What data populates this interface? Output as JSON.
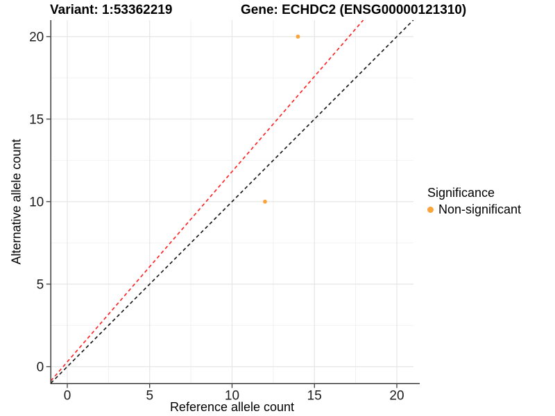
{
  "chart_data": {
    "type": "scatter",
    "title_left": "Variant: 1:53362219",
    "title_right": "Gene: ECHDC2 (ENSG00000121310)",
    "xlabel": "Reference allele count",
    "ylabel": "Alternative allele count",
    "xlim": [
      -1,
      21
    ],
    "ylim": [
      -1,
      21
    ],
    "x_ticks": [
      0,
      5,
      10,
      15,
      20
    ],
    "y_ticks": [
      0,
      5,
      10,
      15,
      20
    ],
    "x_minor_ticks": [
      2.5,
      7.5,
      12.5,
      17.5
    ],
    "y_minor_ticks": [
      2.5,
      7.5,
      12.5,
      17.5
    ],
    "grid": "major+minor",
    "legend_position": "right",
    "points": [
      {
        "x": 14,
        "y": 20,
        "series": "Non-significant"
      },
      {
        "x": 12,
        "y": 10,
        "series": "Non-significant"
      }
    ],
    "lines": [
      {
        "name": "identity-line",
        "slope": 1,
        "intercept": 0,
        "style": "dashed",
        "color": "#1A1A1A"
      },
      {
        "name": "allelic-ratio-line",
        "slope": 1.153,
        "intercept": 0.29,
        "style": "dashed",
        "color": "#FF2424"
      }
    ],
    "legend": {
      "title": "Significance",
      "items": [
        {
          "label": "Non-significant",
          "color": "#FAA43A"
        }
      ]
    },
    "colors": {
      "point": "#FAA43A",
      "grid_major": "#E3E3E3",
      "grid_minor": "#F0F0F0",
      "axis_line": "#2B2B2B",
      "tick_text": "#1A1A1A"
    }
  }
}
